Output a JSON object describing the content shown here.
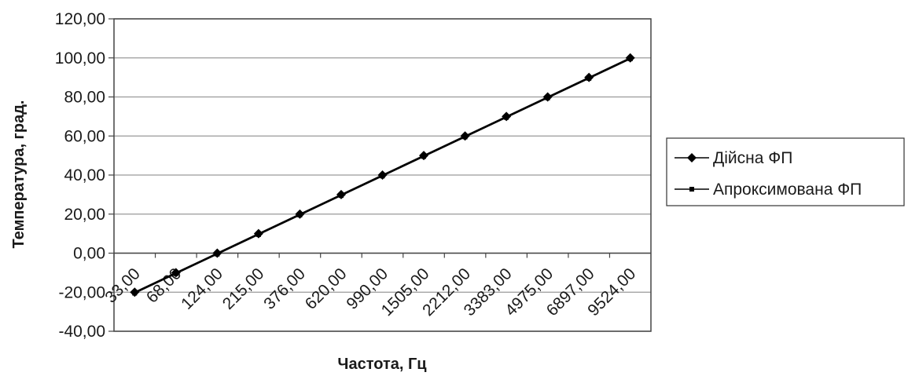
{
  "chart_data": {
    "type": "line",
    "title": "",
    "xlabel": "Частота, Гц",
    "ylabel": "Температура, град.",
    "categories": [
      "33,00",
      "68,00",
      "124,00",
      "215,00",
      "376,00",
      "620,00",
      "990,00",
      "1505,00",
      "2212,00",
      "3383,00",
      "4975,00",
      "6897,00",
      "9524,00"
    ],
    "yticks": [
      "-40,00",
      "-20,00",
      "0,00",
      "20,00",
      "40,00",
      "60,00",
      "80,00",
      "100,00",
      "120,00"
    ],
    "ylim": [
      -40,
      120
    ],
    "grid": true,
    "legend_position": "right",
    "series": [
      {
        "name": "Дійсна ФП",
        "marker": "diamond",
        "color": "#000000",
        "values": [
          -20,
          -10,
          0,
          10,
          20,
          30,
          40,
          50,
          60,
          70,
          80,
          90,
          100
        ]
      },
      {
        "name": "Апроксимована ФП",
        "marker": "square",
        "color": "#000000",
        "values": [
          -20.5,
          -10.5,
          -0.5,
          9.5,
          19.5,
          29.5,
          39.5,
          49.5,
          59.5,
          69.5,
          79.5,
          89.5,
          99.5
        ]
      }
    ]
  }
}
